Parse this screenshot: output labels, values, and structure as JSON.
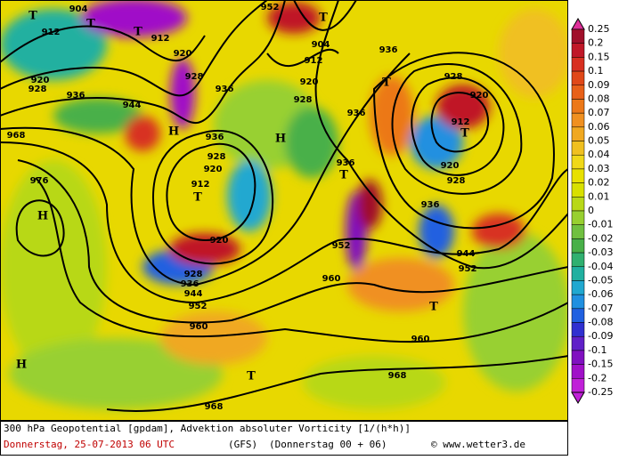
{
  "map": {
    "contour_labels": [
      "912",
      "912",
      "904",
      "920",
      "928",
      "944",
      "936",
      "928",
      "936",
      "920",
      "904",
      "912",
      "920",
      "928",
      "936",
      "936",
      "912",
      "920",
      "928",
      "920",
      "928",
      "936",
      "944",
      "952",
      "952",
      "960",
      "960",
      "968",
      "968",
      "960",
      "952",
      "944",
      "936",
      "928",
      "920",
      "920",
      "928",
      "936",
      "912",
      "968",
      "976",
      "936",
      "952"
    ],
    "pressure_centers": [
      "T",
      "T",
      "T",
      "T",
      "T",
      "T",
      "T",
      "T",
      "T",
      "T",
      "H",
      "H",
      "H",
      "H"
    ]
  },
  "legend": {
    "labels": [
      "0.25",
      "0.2",
      "0.15",
      "0.1",
      "0.09",
      "0.08",
      "0.07",
      "0.06",
      "0.05",
      "0.04",
      "0.03",
      "0.02",
      "0.01",
      "0",
      "-0.01",
      "-0.02",
      "-0.03",
      "-0.04",
      "-0.05",
      "-0.06",
      "-0.07",
      "-0.08",
      "-0.09",
      "-0.1",
      "-0.15",
      "-0.2",
      "-0.25"
    ],
    "colors": [
      "#e0309a",
      "#a0102a",
      "#c01828",
      "#d83020",
      "#e04818",
      "#e86018",
      "#ec7818",
      "#f09020",
      "#f0a820",
      "#f0c020",
      "#f0d818",
      "#e8e000",
      "#d8e000",
      "#b8d818",
      "#98d030",
      "#70c040",
      "#48b048",
      "#30b070",
      "#20b0a0",
      "#20a8d0",
      "#2090e0",
      "#2060e0",
      "#3030d0",
      "#6020c8",
      "#8010c0",
      "#a010c8",
      "#c020d8"
    ]
  },
  "caption": {
    "line1": "300 hPa Geopotential [gpdam], Advektion absoluter Vorticity [1/(h*h)]",
    "date": "Donnerstag, 25-07-2013  06 UTC",
    "model": "(GFS)",
    "run": "(Donnerstag 00 + 06)",
    "credit": "© www.wetter3.de"
  }
}
